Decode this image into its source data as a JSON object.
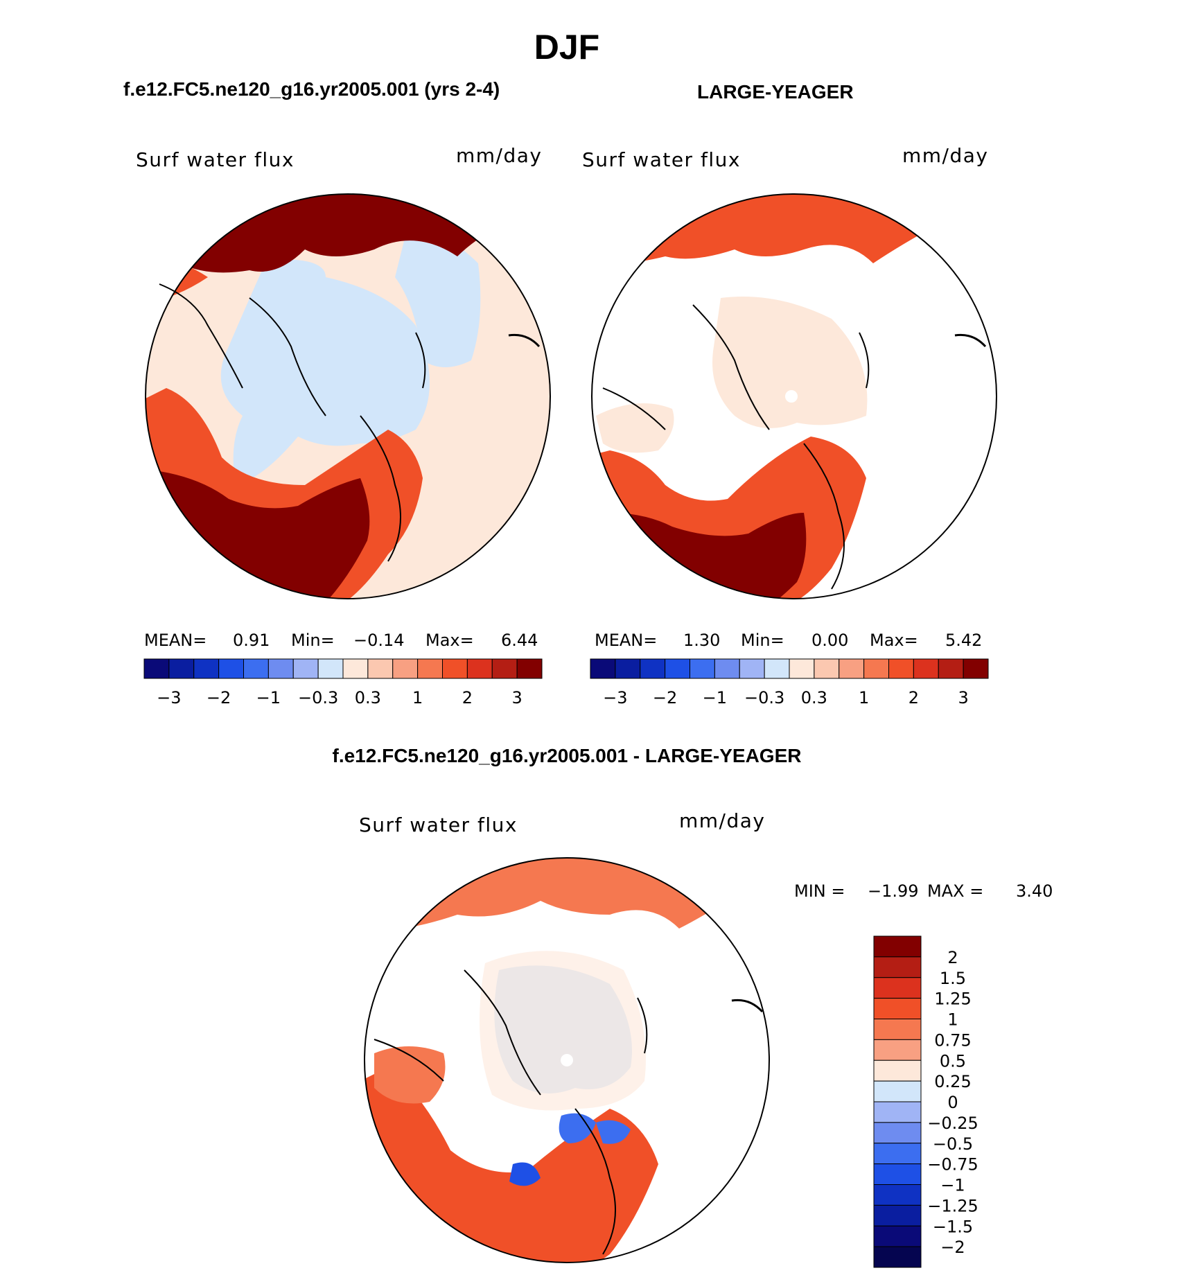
{
  "title": "DJF",
  "panel1": {
    "case_title": "f.e12.FC5.ne120_g16.yr2005.001 (yrs 2-4)",
    "variable": "Surf water flux",
    "units": "mm/day",
    "stats": {
      "mean_label": "MEAN=",
      "mean": "0.91",
      "min_label": "Min=",
      "min": "−0.14",
      "max_label": "Max=",
      "max": "6.44"
    }
  },
  "panel2": {
    "case_title": "LARGE-YEAGER",
    "variable": "Surf water flux",
    "units": "mm/day",
    "stats": {
      "mean_label": "MEAN=",
      "mean": "1.30",
      "min_label": "Min=",
      "min": "0.00",
      "max_label": "Max=",
      "max": "5.42"
    }
  },
  "panel3": {
    "case_title": "f.e12.FC5.ne120_g16.yr2005.001 - LARGE-YEAGER",
    "variable": "Surf water flux",
    "units": "mm/day",
    "stats": {
      "min_label": "MIN =",
      "min": "−1.99",
      "max_label": "MAX =",
      "max": "3.40"
    }
  },
  "colorbar_top": {
    "colors": [
      "#0a0a78",
      "#0a1ea0",
      "#0f32c3",
      "#1e50e6",
      "#3c6ef0",
      "#6e8cf0",
      "#a0b4f5",
      "#d2e6fa",
      "#fde8da",
      "#fbc8b0",
      "#f8a082",
      "#f57850",
      "#f05028",
      "#dc321e",
      "#b41e14",
      "#820000"
    ],
    "tick_labels": [
      "−3",
      "−2",
      "−1",
      "−0.3",
      "0.3",
      "1",
      "2",
      "3"
    ]
  },
  "colorbar_diff": {
    "colors": [
      "#820000",
      "#b41e14",
      "#dc321e",
      "#f05028",
      "#f57850",
      "#f8a082",
      "#fde8da",
      "#d2e6fa",
      "#a0b4f5",
      "#6e8cf0",
      "#3c6ef0",
      "#1e50e6",
      "#0f32c3",
      "#0a1ea0",
      "#0a0a78",
      "#050550"
    ],
    "tick_labels": [
      "2",
      "1.5",
      "1.25",
      "1",
      "0.75",
      "0.5",
      "0.25",
      "0",
      "−0.25",
      "−0.5",
      "−0.75",
      "−1",
      "−1.25",
      "−1.5",
      "−2"
    ]
  },
  "map_colors": {
    "ocean_low": "#d2e6fa",
    "land_low": "#fde8da",
    "high": "#f05028",
    "very_high": "#820000",
    "mid": "#f57850",
    "blue_mid": "#3c6ef0",
    "blue_dark": "#1e50e6"
  }
}
